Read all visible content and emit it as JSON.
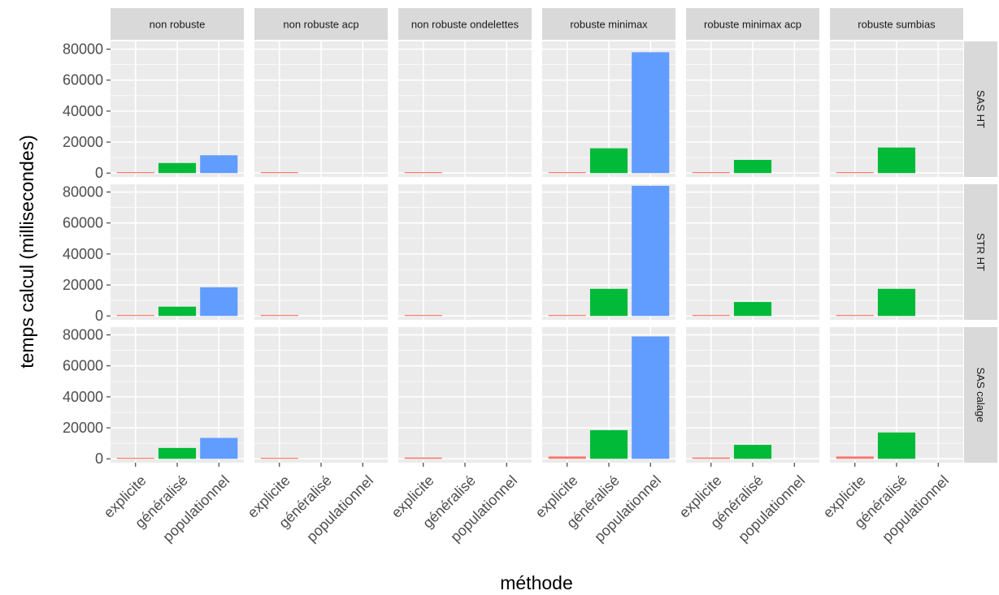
{
  "chart_data": {
    "type": "bar",
    "xlabel": "méthode",
    "ylabel": "temps calcul (millisecondes)",
    "ylim": [
      0,
      85000
    ],
    "y_ticks": [
      0,
      20000,
      40000,
      60000,
      80000
    ],
    "y_tick_labels": [
      "0",
      "20000",
      "40000",
      "60000",
      "80000"
    ],
    "categories": [
      "explicite",
      "généralisé",
      "populationnel"
    ],
    "category_colors": {
      "explicite": "#F8766D",
      "généralisé": "#00BA38",
      "populationnel": "#619CFF"
    },
    "columns": [
      "non robuste",
      "non robuste acp",
      "non robuste ondelettes",
      "robuste minimax",
      "robuste minimax acp",
      "robuste sumbias"
    ],
    "rows": [
      "SAS HT",
      "STR HT",
      "SAS calage"
    ],
    "legend": "none",
    "grid": true,
    "panels": [
      {
        "row": "SAS HT",
        "column": "non robuste",
        "values": [
          300,
          6500,
          11500
        ]
      },
      {
        "row": "SAS HT",
        "column": "non robuste acp",
        "values": [
          200,
          null,
          null
        ]
      },
      {
        "row": "SAS HT",
        "column": "non robuste ondelettes",
        "values": [
          300,
          null,
          null
        ]
      },
      {
        "row": "SAS HT",
        "column": "robuste minimax",
        "values": [
          400,
          16000,
          78000
        ]
      },
      {
        "row": "SAS HT",
        "column": "robuste minimax acp",
        "values": [
          300,
          8500,
          null
        ]
      },
      {
        "row": "SAS HT",
        "column": "robuste sumbias",
        "values": [
          400,
          16500,
          null
        ]
      },
      {
        "row": "STR HT",
        "column": "non robuste",
        "values": [
          300,
          6000,
          18500
        ]
      },
      {
        "row": "STR HT",
        "column": "non robuste acp",
        "values": [
          200,
          null,
          null
        ]
      },
      {
        "row": "STR HT",
        "column": "non robuste ondelettes",
        "values": [
          300,
          null,
          null
        ]
      },
      {
        "row": "STR HT",
        "column": "robuste minimax",
        "values": [
          400,
          17500,
          84000
        ]
      },
      {
        "row": "STR HT",
        "column": "robuste minimax acp",
        "values": [
          300,
          9000,
          null
        ]
      },
      {
        "row": "STR HT",
        "column": "robuste sumbias",
        "values": [
          400,
          17500,
          null
        ]
      },
      {
        "row": "SAS calage",
        "column": "non robuste",
        "values": [
          400,
          7000,
          13500
        ]
      },
      {
        "row": "SAS calage",
        "column": "non robuste acp",
        "values": [
          300,
          null,
          null
        ]
      },
      {
        "row": "SAS calage",
        "column": "non robuste ondelettes",
        "values": [
          800,
          null,
          null
        ]
      },
      {
        "row": "SAS calage",
        "column": "robuste minimax",
        "values": [
          1500,
          18500,
          79000
        ]
      },
      {
        "row": "SAS calage",
        "column": "robuste minimax acp",
        "values": [
          800,
          9000,
          null
        ]
      },
      {
        "row": "SAS calage",
        "column": "robuste sumbias",
        "values": [
          1500,
          17000,
          null
        ]
      }
    ]
  }
}
